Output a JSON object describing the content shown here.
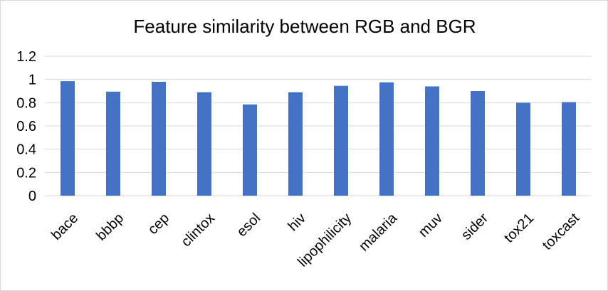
{
  "chart_data": {
    "type": "bar",
    "title": "Feature similarity between RGB and BGR",
    "xlabel": "",
    "ylabel": "",
    "categories": [
      "bace",
      "bbbp",
      "cep",
      "clintox",
      "esol",
      "hiv",
      "lipophilicity",
      "malaria",
      "muv",
      "sider",
      "tox21",
      "toxcast"
    ],
    "series": [
      {
        "values": [
          0.985,
          0.895,
          0.98,
          0.89,
          0.785,
          0.89,
          0.945,
          0.975,
          0.94,
          0.9,
          0.8,
          0.805
        ]
      }
    ],
    "ylim": [
      0,
      1.2
    ],
    "yticks": [
      "0",
      "0.2",
      "0.4",
      "0.6",
      "0.8",
      "1",
      "1.2"
    ],
    "ytick_values": [
      0,
      0.2,
      0.4,
      0.6,
      0.8,
      1,
      1.2
    ],
    "grid": true,
    "legend": "none",
    "bar_color": "#4472c4",
    "grid_color": "#d9d9d9"
  }
}
